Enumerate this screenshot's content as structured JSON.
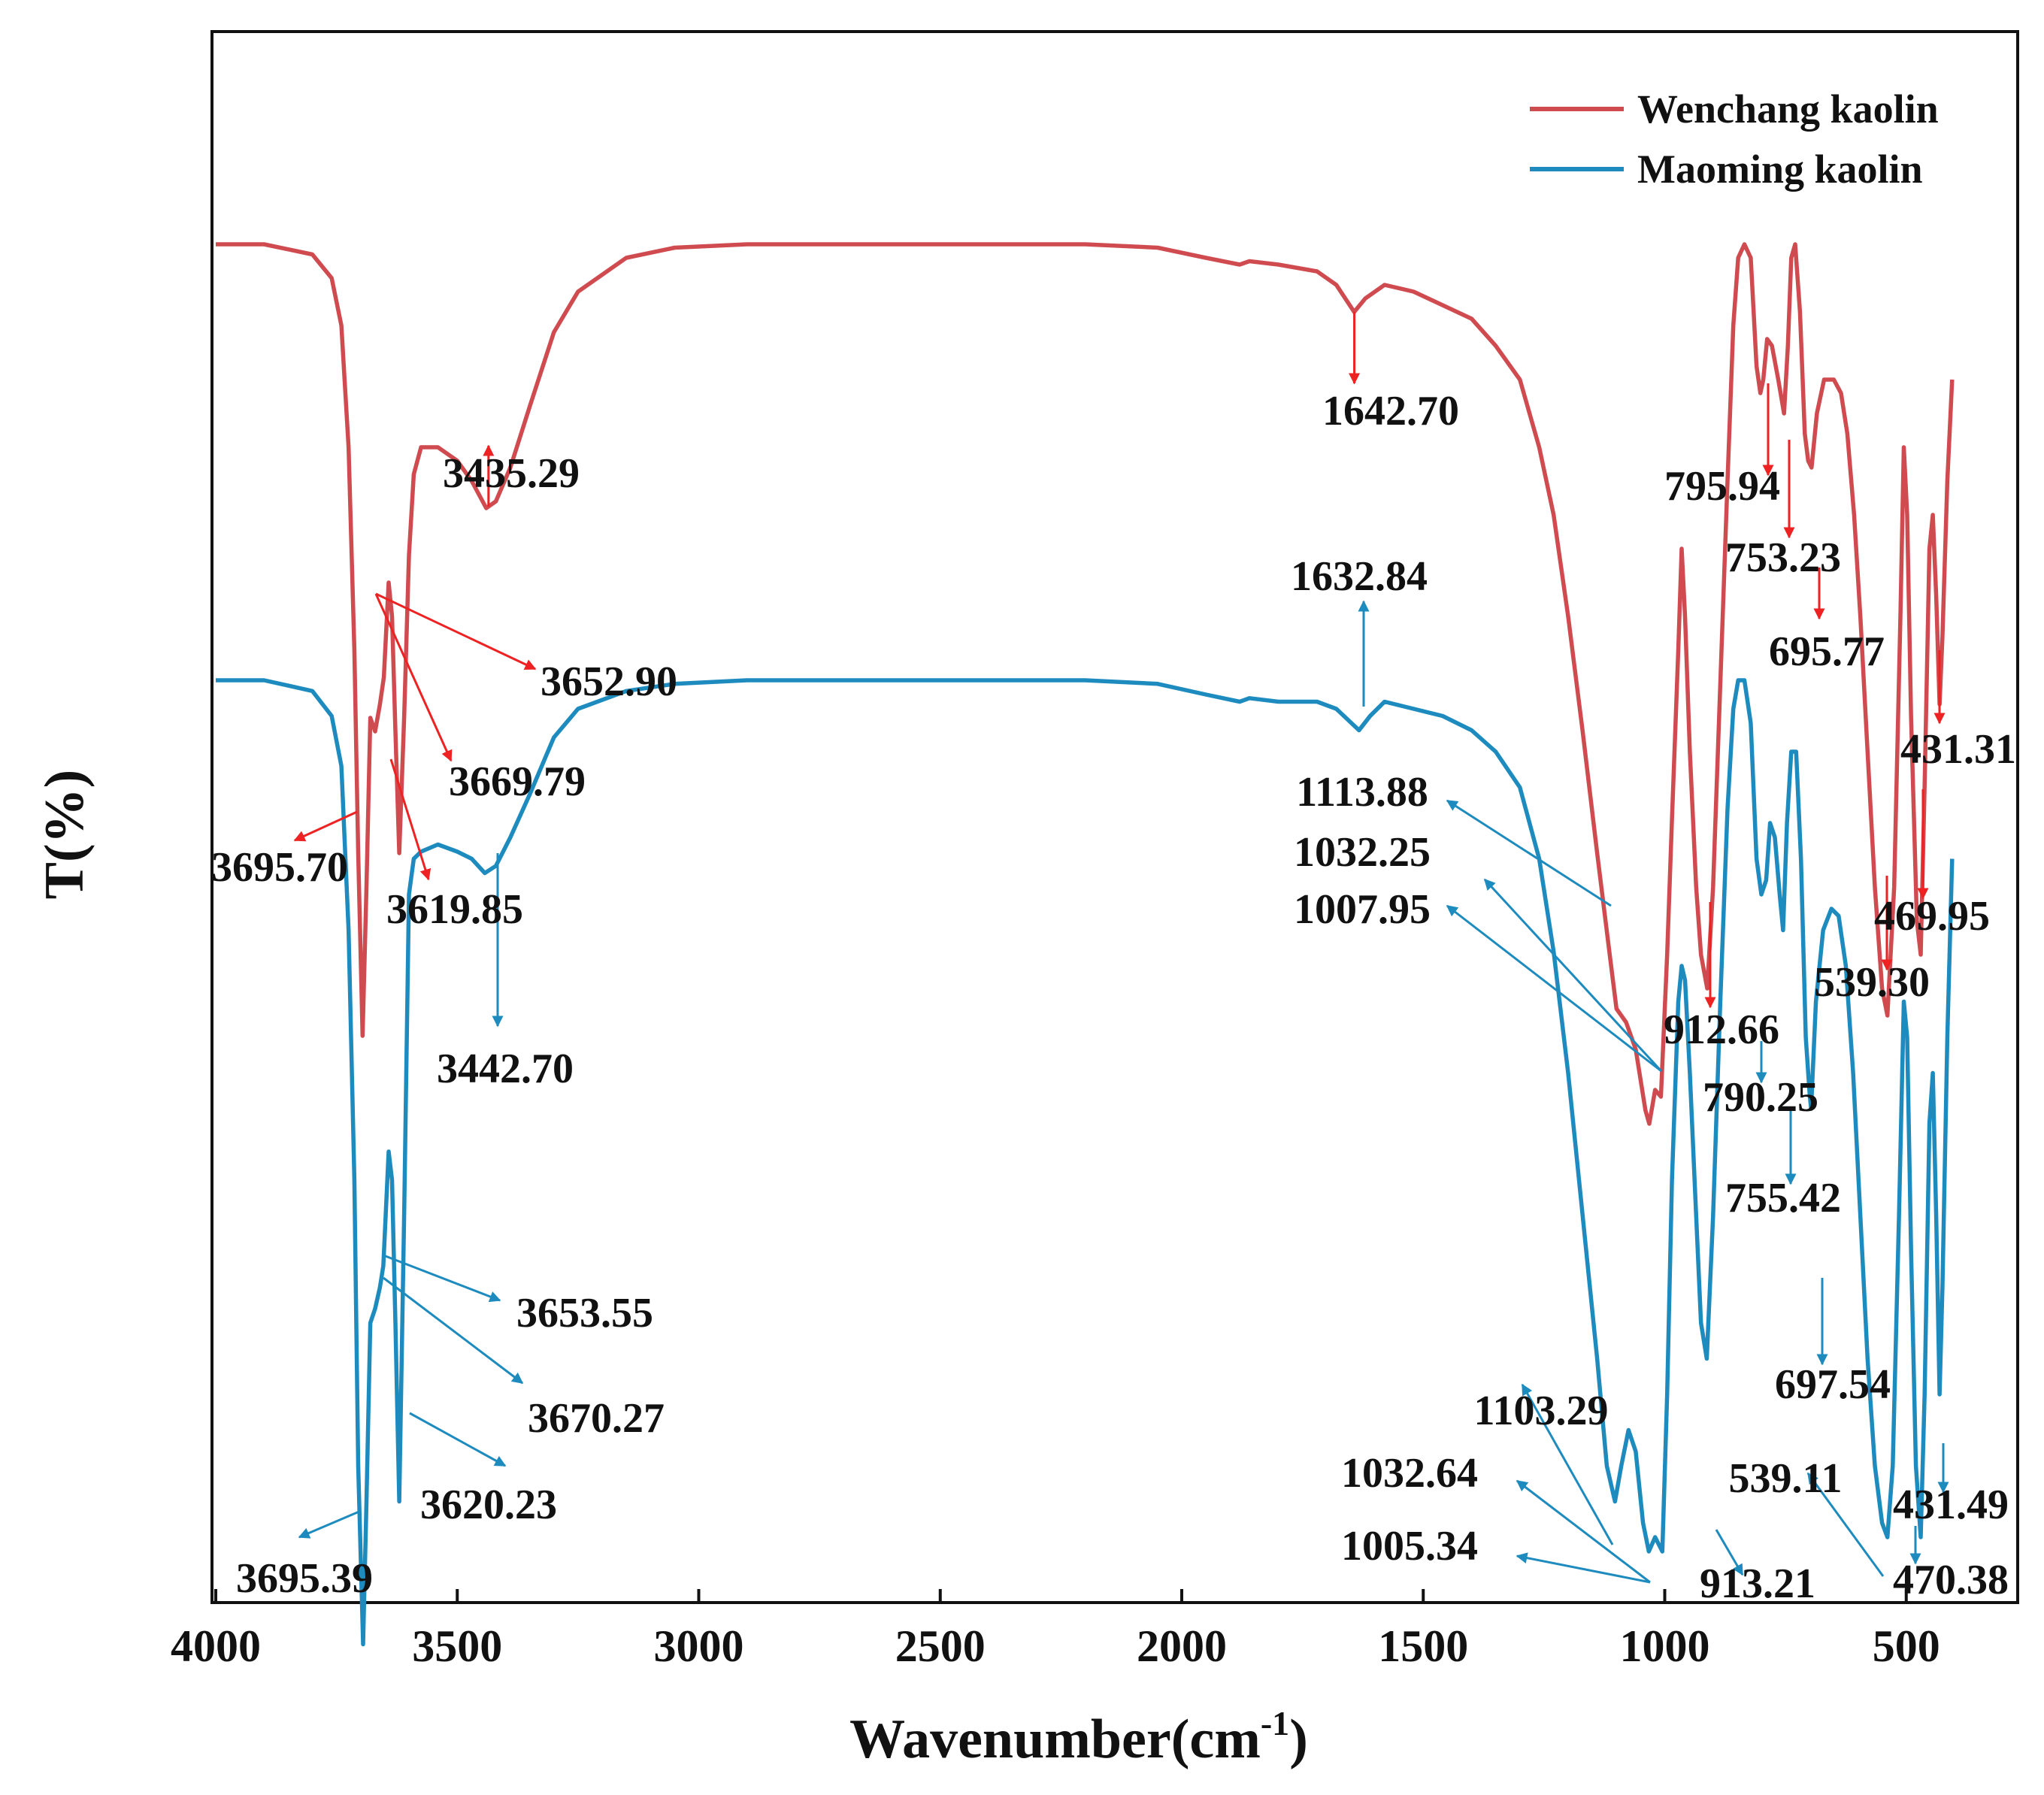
{
  "chart_data": {
    "type": "line",
    "title": "",
    "xlabel": "Wavenumber(cm",
    "xlabel_sup": "-1",
    "xlabel_close": ")",
    "ylabel": "T(%)",
    "xlim": [
      4000,
      250
    ],
    "x_reversed": true,
    "y_ticks_shown": false,
    "grid": false,
    "legend_position": "top-right",
    "x_ticks": [
      {
        "value": 4000,
        "label": "4000"
      },
      {
        "value": 3500,
        "label": "3500"
      },
      {
        "value": 3000,
        "label": "3000"
      },
      {
        "value": 2500,
        "label": "2500"
      },
      {
        "value": 2000,
        "label": "2000"
      },
      {
        "value": 1500,
        "label": "1500"
      },
      {
        "value": 1000,
        "label": "1000"
      },
      {
        "value": 500,
        "label": "500"
      }
    ],
    "series": [
      {
        "name": "Wenchang kaolin",
        "color": "#cf4b4f",
        "arrow_color": "#ee2222",
        "points": [
          [
            4000,
            0.0
          ],
          [
            3900,
            0.0
          ],
          [
            3800,
            0.015
          ],
          [
            3760,
            0.05
          ],
          [
            3740,
            0.12
          ],
          [
            3725,
            0.3
          ],
          [
            3713,
            0.6
          ],
          [
            3705,
            0.9
          ],
          [
            3696,
            1.17
          ],
          [
            3688,
            0.95
          ],
          [
            3680,
            0.7
          ],
          [
            3670,
            0.72
          ],
          [
            3660,
            0.68
          ],
          [
            3652,
            0.64
          ],
          [
            3642,
            0.5
          ],
          [
            3635,
            0.55
          ],
          [
            3628,
            0.72
          ],
          [
            3620,
            0.9
          ],
          [
            3610,
            0.7
          ],
          [
            3600,
            0.46
          ],
          [
            3590,
            0.34
          ],
          [
            3575,
            0.3
          ],
          [
            3540,
            0.3
          ],
          [
            3500,
            0.32
          ],
          [
            3470,
            0.35
          ],
          [
            3440,
            0.39
          ],
          [
            3420,
            0.38
          ],
          [
            3390,
            0.33
          ],
          [
            3350,
            0.24
          ],
          [
            3300,
            0.13
          ],
          [
            3250,
            0.07
          ],
          [
            3150,
            0.02
          ],
          [
            3050,
            0.005
          ],
          [
            2900,
            0.0
          ],
          [
            2700,
            0.0
          ],
          [
            2400,
            0.0
          ],
          [
            2200,
            0.0
          ],
          [
            2050,
            0.005
          ],
          [
            1950,
            0.02
          ],
          [
            1880,
            0.03
          ],
          [
            1860,
            0.025
          ],
          [
            1800,
            0.03
          ],
          [
            1720,
            0.04
          ],
          [
            1680,
            0.06
          ],
          [
            1643,
            0.1
          ],
          [
            1620,
            0.08
          ],
          [
            1580,
            0.06
          ],
          [
            1520,
            0.07
          ],
          [
            1460,
            0.09
          ],
          [
            1400,
            0.11
          ],
          [
            1350,
            0.15
          ],
          [
            1300,
            0.2
          ],
          [
            1260,
            0.3
          ],
          [
            1230,
            0.4
          ],
          [
            1200,
            0.55
          ],
          [
            1170,
            0.72
          ],
          [
            1140,
            0.9
          ],
          [
            1114,
            1.05
          ],
          [
            1100,
            1.13
          ],
          [
            1080,
            1.15
          ],
          [
            1060,
            1.19
          ],
          [
            1040,
            1.28
          ],
          [
            1032,
            1.3
          ],
          [
            1020,
            1.25
          ],
          [
            1008,
            1.26
          ],
          [
            995,
            1.05
          ],
          [
            985,
            0.85
          ],
          [
            972,
            0.6
          ],
          [
            965,
            0.45
          ],
          [
            958,
            0.55
          ],
          [
            948,
            0.75
          ],
          [
            935,
            0.95
          ],
          [
            925,
            1.05
          ],
          [
            912,
            1.1
          ],
          [
            900,
            0.95
          ],
          [
            885,
            0.65
          ],
          [
            870,
            0.35
          ],
          [
            858,
            0.12
          ],
          [
            848,
            0.02
          ],
          [
            835,
            0.0
          ],
          [
            822,
            0.02
          ],
          [
            810,
            0.18
          ],
          [
            802,
            0.22
          ],
          [
            796,
            0.2
          ],
          [
            788,
            0.14
          ],
          [
            778,
            0.15
          ],
          [
            765,
            0.2
          ],
          [
            753,
            0.25
          ],
          [
            745,
            0.15
          ],
          [
            738,
            0.02
          ],
          [
            730,
            0.0
          ],
          [
            720,
            0.1
          ],
          [
            710,
            0.28
          ],
          [
            703,
            0.32
          ],
          [
            696,
            0.33
          ],
          [
            685,
            0.25
          ],
          [
            670,
            0.2
          ],
          [
            650,
            0.2
          ],
          [
            635,
            0.22
          ],
          [
            622,
            0.28
          ],
          [
            608,
            0.4
          ],
          [
            595,
            0.55
          ],
          [
            580,
            0.75
          ],
          [
            565,
            0.95
          ],
          [
            550,
            1.1
          ],
          [
            539,
            1.14
          ],
          [
            525,
            0.95
          ],
          [
            512,
            0.55
          ],
          [
            505,
            0.3
          ],
          [
            498,
            0.4
          ],
          [
            490,
            0.7
          ],
          [
            478,
            1.0
          ],
          [
            470,
            1.05
          ],
          [
            462,
            0.8
          ],
          [
            452,
            0.45
          ],
          [
            445,
            0.4
          ],
          [
            438,
            0.52
          ],
          [
            431,
            0.68
          ],
          [
            425,
            0.58
          ],
          [
            415,
            0.35
          ],
          [
            405,
            0.2
          ]
        ]
      },
      {
        "name": "Maoming kaolin",
        "color": "#1e8bbf",
        "arrow_color": "#1e8bbf",
        "points": [
          [
            4000,
            0.0
          ],
          [
            3900,
            0.0
          ],
          [
            3800,
            0.015
          ],
          [
            3760,
            0.05
          ],
          [
            3740,
            0.12
          ],
          [
            3725,
            0.35
          ],
          [
            3713,
            0.7
          ],
          [
            3705,
            1.1
          ],
          [
            3695,
            1.35
          ],
          [
            3688,
            1.15
          ],
          [
            3680,
            0.9
          ],
          [
            3670,
            0.88
          ],
          [
            3660,
            0.85
          ],
          [
            3653,
            0.82
          ],
          [
            3642,
            0.66
          ],
          [
            3635,
            0.7
          ],
          [
            3628,
            0.9
          ],
          [
            3620,
            1.15
          ],
          [
            3610,
            0.75
          ],
          [
            3600,
            0.3
          ],
          [
            3590,
            0.25
          ],
          [
            3575,
            0.24
          ],
          [
            3540,
            0.23
          ],
          [
            3500,
            0.24
          ],
          [
            3470,
            0.25
          ],
          [
            3443,
            0.27
          ],
          [
            3420,
            0.26
          ],
          [
            3390,
            0.22
          ],
          [
            3350,
            0.16
          ],
          [
            3300,
            0.08
          ],
          [
            3250,
            0.04
          ],
          [
            3150,
            0.015
          ],
          [
            3050,
            0.005
          ],
          [
            2900,
            0.0
          ],
          [
            2700,
            0.0
          ],
          [
            2400,
            0.0
          ],
          [
            2200,
            0.0
          ],
          [
            2050,
            0.005
          ],
          [
            1950,
            0.02
          ],
          [
            1880,
            0.03
          ],
          [
            1860,
            0.025
          ],
          [
            1800,
            0.03
          ],
          [
            1720,
            0.03
          ],
          [
            1680,
            0.04
          ],
          [
            1633,
            0.07
          ],
          [
            1610,
            0.05
          ],
          [
            1580,
            0.03
          ],
          [
            1520,
            0.04
          ],
          [
            1460,
            0.05
          ],
          [
            1400,
            0.07
          ],
          [
            1350,
            0.1
          ],
          [
            1300,
            0.15
          ],
          [
            1260,
            0.25
          ],
          [
            1230,
            0.38
          ],
          [
            1200,
            0.55
          ],
          [
            1170,
            0.75
          ],
          [
            1140,
            0.95
          ],
          [
            1120,
            1.1
          ],
          [
            1103,
            1.15
          ],
          [
            1090,
            1.1
          ],
          [
            1075,
            1.05
          ],
          [
            1060,
            1.08
          ],
          [
            1045,
            1.18
          ],
          [
            1033,
            1.22
          ],
          [
            1020,
            1.2
          ],
          [
            1005,
            1.22
          ],
          [
            995,
            1.0
          ],
          [
            985,
            0.7
          ],
          [
            972,
            0.45
          ],
          [
            965,
            0.4
          ],
          [
            958,
            0.42
          ],
          [
            948,
            0.55
          ],
          [
            935,
            0.75
          ],
          [
            925,
            0.9
          ],
          [
            913,
            0.95
          ],
          [
            900,
            0.75
          ],
          [
            885,
            0.45
          ],
          [
            870,
            0.18
          ],
          [
            858,
            0.04
          ],
          [
            848,
            0.0
          ],
          [
            835,
            0.0
          ],
          [
            822,
            0.06
          ],
          [
            810,
            0.25
          ],
          [
            800,
            0.3
          ],
          [
            790,
            0.28
          ],
          [
            782,
            0.2
          ],
          [
            772,
            0.22
          ],
          [
            762,
            0.3
          ],
          [
            755,
            0.35
          ],
          [
            747,
            0.2
          ],
          [
            738,
            0.1
          ],
          [
            728,
            0.1
          ],
          [
            718,
            0.25
          ],
          [
            708,
            0.5
          ],
          [
            700,
            0.58
          ],
          [
            697,
            0.6
          ],
          [
            687,
            0.45
          ],
          [
            672,
            0.35
          ],
          [
            655,
            0.32
          ],
          [
            640,
            0.33
          ],
          [
            625,
            0.4
          ],
          [
            610,
            0.55
          ],
          [
            595,
            0.75
          ],
          [
            580,
            0.95
          ],
          [
            565,
            1.1
          ],
          [
            550,
            1.18
          ],
          [
            539,
            1.2
          ],
          [
            528,
            1.1
          ],
          [
            515,
            0.75
          ],
          [
            505,
            0.45
          ],
          [
            498,
            0.5
          ],
          [
            490,
            0.8
          ],
          [
            480,
            1.1
          ],
          [
            470,
            1.2
          ],
          [
            462,
            1.0
          ],
          [
            452,
            0.62
          ],
          [
            445,
            0.55
          ],
          [
            438,
            0.75
          ],
          [
            431,
            1.0
          ],
          [
            425,
            0.85
          ],
          [
            415,
            0.5
          ],
          [
            405,
            0.25
          ]
        ]
      }
    ],
    "annotations": [
      {
        "series": 0,
        "label": "3435.29",
        "x": 3435.29
      },
      {
        "series": 0,
        "label": "1642.70",
        "x": 1642.7
      },
      {
        "series": 0,
        "label": "3652.90",
        "x": 3652.9
      },
      {
        "series": 0,
        "label": "3669.79",
        "x": 3669.79
      },
      {
        "series": 0,
        "label": "3695.70",
        "x": 3695.7
      },
      {
        "series": 0,
        "label": "3619.85",
        "x": 3619.85
      },
      {
        "series": 0,
        "label": "795.94",
        "x": 795.94
      },
      {
        "series": 0,
        "label": "753.23",
        "x": 753.23
      },
      {
        "series": 0,
        "label": "695.77",
        "x": 695.77
      },
      {
        "series": 0,
        "label": "431.31",
        "x": 431.31
      },
      {
        "series": 0,
        "label": "469.95",
        "x": 469.95
      },
      {
        "series": 0,
        "label": "539.30",
        "x": 539.3
      },
      {
        "series": 0,
        "label": "912.66",
        "x": 912.66
      },
      {
        "series": 1,
        "label": "1113.88",
        "x": 1113.88
      },
      {
        "series": 1,
        "label": "1032.25",
        "x": 1032.25
      },
      {
        "series": 1,
        "label": "1007.95",
        "x": 1007.95
      },
      {
        "series": 1,
        "label": "1632.84",
        "x": 1632.84
      },
      {
        "series": 1,
        "label": "3442.70",
        "x": 3442.7
      },
      {
        "series": 1,
        "label": "790.25",
        "x": 790.25
      },
      {
        "series": 1,
        "label": "755.42",
        "x": 755.42
      },
      {
        "series": 1,
        "label": "697.54",
        "x": 697.54
      },
      {
        "series": 1,
        "label": "3653.55",
        "x": 3653.55
      },
      {
        "series": 1,
        "label": "3670.27",
        "x": 3670.27
      },
      {
        "series": 1,
        "label": "3620.23",
        "x": 3620.23
      },
      {
        "series": 1,
        "label": "3695.39",
        "x": 3695.39
      },
      {
        "series": 1,
        "label": "1103.29",
        "x": 1103.29
      },
      {
        "series": 1,
        "label": "1032.64",
        "x": 1032.64
      },
      {
        "series": 1,
        "label": "1005.34",
        "x": 1005.34
      },
      {
        "series": 1,
        "label": "913.21",
        "x": 913.21
      },
      {
        "series": 1,
        "label": "539.11",
        "x": 539.11
      },
      {
        "series": 1,
        "label": "431.49",
        "x": 431.49
      },
      {
        "series": 1,
        "label": "470.38",
        "x": 470.38
      }
    ]
  }
}
